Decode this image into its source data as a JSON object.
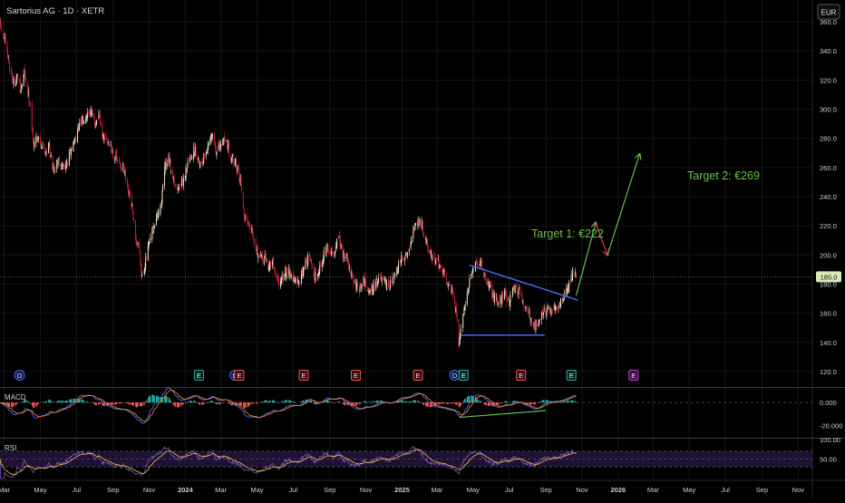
{
  "header": {
    "title": "Sartorius AG · 1D · XETR",
    "currency_button": "EUR"
  },
  "colors": {
    "background": "#000000",
    "grid": "#151515",
    "candle_up": "#ece7c8",
    "candle_down": "#c41f35",
    "trendline": "#3d6df0",
    "projection_up": "#6bbf4a",
    "projection_down": "#e53b4a",
    "macd_line": "#3d79f2",
    "signal_line": "#f07a34",
    "hist_pos": "#26a69a",
    "hist_neg": "#ef5350",
    "rsi_line": "#7e57c2",
    "rsi_ma": "#f2c23a",
    "price_badge": "#d9e8b8"
  },
  "annotations": {
    "target1": "Target 1: €222",
    "target2": "Target 2: €269"
  },
  "event_markers": [
    {
      "kind": "D",
      "date": "2023-03-27"
    },
    {
      "kind": "E",
      "date": "2024-01-24"
    },
    {
      "kind": "D",
      "date": "2024-03-25"
    },
    {
      "kind": "E",
      "date": "2024-04-01"
    },
    {
      "kind": "E",
      "date": "2024-07-19"
    },
    {
      "kind": "E",
      "date": "2024-10-15"
    },
    {
      "kind": "E",
      "date": "2025-01-28"
    },
    {
      "kind": "D",
      "date": "2025-03-31"
    },
    {
      "kind": "E",
      "date": "2025-04-15"
    },
    {
      "kind": "E",
      "date": "2025-07-21"
    },
    {
      "kind": "E",
      "date": "2025-10-14"
    },
    {
      "kind": "E",
      "date": "2026-01-27",
      "upcoming": true
    }
  ],
  "chart_data": [
    {
      "type": "candlestick",
      "title": "Sartorius AG · 1D · XETR",
      "currency": "EUR",
      "x_range": [
        "2023-02-22",
        "2026-11-25"
      ],
      "ylim": [
        110,
        370
      ],
      "y_ticks": [
        120.0,
        140.0,
        160.0,
        180.0,
        200.0,
        220.0,
        240.0,
        260.0,
        280.0,
        300.0,
        320.0,
        340.0,
        360.0
      ],
      "x_ticks": [
        {
          "label": "Mar",
          "date": "2023-03-01"
        },
        {
          "label": "May",
          "date": "2023-05-01"
        },
        {
          "label": "Jul",
          "date": "2023-07-01"
        },
        {
          "label": "Sep",
          "date": "2023-09-01"
        },
        {
          "label": "Nov",
          "date": "2023-11-01"
        },
        {
          "label": "2024",
          "date": "2024-01-01"
        },
        {
          "label": "Mar",
          "date": "2024-03-01"
        },
        {
          "label": "May",
          "date": "2024-05-01"
        },
        {
          "label": "Jul",
          "date": "2024-07-01"
        },
        {
          "label": "Sep",
          "date": "2024-09-01"
        },
        {
          "label": "Nov",
          "date": "2024-11-01"
        },
        {
          "label": "2025",
          "date": "2025-01-01"
        },
        {
          "label": "Mar",
          "date": "2025-03-01"
        },
        {
          "label": "May",
          "date": "2025-05-01"
        },
        {
          "label": "Jul",
          "date": "2025-07-01"
        },
        {
          "label": "Sep",
          "date": "2025-09-01"
        },
        {
          "label": "Nov",
          "date": "2025-11-01"
        },
        {
          "label": "2026",
          "date": "2026-01-01"
        },
        {
          "label": "Mar",
          "date": "2026-03-01"
        },
        {
          "label": "May",
          "date": "2026-05-01"
        },
        {
          "label": "Jul",
          "date": "2026-07-01"
        },
        {
          "label": "Sep",
          "date": "2026-09-01"
        },
        {
          "label": "Nov",
          "date": "2026-11-01"
        }
      ],
      "last_price": 185.0,
      "last_price_label": "185.0",
      "close_path": [
        [
          "2023-02-22",
          358
        ],
        [
          "2023-03-03",
          345
        ],
        [
          "2023-03-10",
          330
        ],
        [
          "2023-03-17",
          318
        ],
        [
          "2023-03-24",
          322
        ],
        [
          "2023-03-29",
          312
        ],
        [
          "2023-04-04",
          326
        ],
        [
          "2023-04-11",
          310
        ],
        [
          "2023-04-14",
          305
        ],
        [
          "2023-04-19",
          276
        ],
        [
          "2023-04-28",
          282
        ],
        [
          "2023-05-08",
          270
        ],
        [
          "2023-05-16",
          276
        ],
        [
          "2023-05-22",
          258
        ],
        [
          "2023-06-01",
          266
        ],
        [
          "2023-06-08",
          260
        ],
        [
          "2023-06-15",
          262
        ],
        [
          "2023-06-22",
          272
        ],
        [
          "2023-07-03",
          285
        ],
        [
          "2023-07-10",
          292
        ],
        [
          "2023-07-17",
          296
        ],
        [
          "2023-07-24",
          300
        ],
        [
          "2023-08-01",
          290
        ],
        [
          "2023-08-08",
          295
        ],
        [
          "2023-08-15",
          280
        ],
        [
          "2023-08-24",
          278
        ],
        [
          "2023-09-01",
          270
        ],
        [
          "2023-09-11",
          262
        ],
        [
          "2023-09-18",
          260
        ],
        [
          "2023-09-25",
          245
        ],
        [
          "2023-10-02",
          235
        ],
        [
          "2023-10-09",
          210
        ],
        [
          "2023-10-16",
          205
        ],
        [
          "2023-10-19",
          186
        ],
        [
          "2023-10-23",
          190
        ],
        [
          "2023-10-30",
          204
        ],
        [
          "2023-11-06",
          215
        ],
        [
          "2023-11-13",
          225
        ],
        [
          "2023-11-20",
          232
        ],
        [
          "2023-11-27",
          258
        ],
        [
          "2023-12-04",
          265
        ],
        [
          "2023-12-11",
          255
        ],
        [
          "2023-12-18",
          245
        ],
        [
          "2023-12-27",
          250
        ],
        [
          "2024-01-05",
          262
        ],
        [
          "2024-01-12",
          270
        ],
        [
          "2024-01-19",
          272
        ],
        [
          "2024-01-26",
          262
        ],
        [
          "2024-02-02",
          268
        ],
        [
          "2024-02-09",
          275
        ],
        [
          "2024-02-16",
          282
        ],
        [
          "2024-02-23",
          270
        ],
        [
          "2024-03-01",
          275
        ],
        [
          "2024-03-08",
          282
        ],
        [
          "2024-03-15",
          272
        ],
        [
          "2024-03-22",
          265
        ],
        [
          "2024-03-29",
          258
        ],
        [
          "2024-04-04",
          250
        ],
        [
          "2024-04-08",
          230
        ],
        [
          "2024-04-15",
          222
        ],
        [
          "2024-04-22",
          220
        ],
        [
          "2024-04-29",
          206
        ],
        [
          "2024-05-06",
          196
        ],
        [
          "2024-05-13",
          200
        ],
        [
          "2024-05-20",
          192
        ],
        [
          "2024-05-27",
          195
        ],
        [
          "2024-06-03",
          184
        ],
        [
          "2024-06-10",
          180
        ],
        [
          "2024-06-17",
          188
        ],
        [
          "2024-06-24",
          190
        ],
        [
          "2024-07-01",
          183
        ],
        [
          "2024-07-08",
          180
        ],
        [
          "2024-07-15",
          186
        ],
        [
          "2024-07-22",
          196
        ],
        [
          "2024-07-29",
          198
        ],
        [
          "2024-08-05",
          185
        ],
        [
          "2024-08-12",
          188
        ],
        [
          "2024-08-19",
          196
        ],
        [
          "2024-08-26",
          206
        ],
        [
          "2024-09-02",
          200
        ],
        [
          "2024-09-09",
          204
        ],
        [
          "2024-09-16",
          212
        ],
        [
          "2024-09-23",
          200
        ],
        [
          "2024-09-30",
          198
        ],
        [
          "2024-10-07",
          186
        ],
        [
          "2024-10-14",
          180
        ],
        [
          "2024-10-21",
          175
        ],
        [
          "2024-10-28",
          182
        ],
        [
          "2024-11-04",
          178
        ],
        [
          "2024-11-11",
          176
        ],
        [
          "2024-11-18",
          182
        ],
        [
          "2024-11-25",
          184
        ],
        [
          "2024-12-02",
          180
        ],
        [
          "2024-12-09",
          178
        ],
        [
          "2024-12-16",
          182
        ],
        [
          "2024-12-23",
          188
        ],
        [
          "2024-12-30",
          196
        ],
        [
          "2025-01-06",
          200
        ],
        [
          "2025-01-13",
          204
        ],
        [
          "2025-01-20",
          218
        ],
        [
          "2025-01-27",
          222
        ],
        [
          "2025-01-31",
          226
        ],
        [
          "2025-02-07",
          215
        ],
        [
          "2025-02-14",
          205
        ],
        [
          "2025-02-21",
          198
        ],
        [
          "2025-02-28",
          196
        ],
        [
          "2025-03-07",
          192
        ],
        [
          "2025-03-14",
          186
        ],
        [
          "2025-03-21",
          180
        ],
        [
          "2025-03-28",
          174
        ],
        [
          "2025-04-04",
          155
        ],
        [
          "2025-04-07",
          138
        ],
        [
          "2025-04-14",
          160
        ],
        [
          "2025-04-22",
          175
        ],
        [
          "2025-04-28",
          186
        ],
        [
          "2025-05-05",
          192
        ],
        [
          "2025-05-12",
          195
        ],
        [
          "2025-05-19",
          188
        ],
        [
          "2025-05-26",
          180
        ],
        [
          "2025-06-02",
          174
        ],
        [
          "2025-06-09",
          168
        ],
        [
          "2025-06-16",
          170
        ],
        [
          "2025-06-23",
          174
        ],
        [
          "2025-06-30",
          168
        ],
        [
          "2025-07-07",
          176
        ],
        [
          "2025-07-14",
          178
        ],
        [
          "2025-07-21",
          170
        ],
        [
          "2025-07-28",
          164
        ],
        [
          "2025-08-04",
          160
        ],
        [
          "2025-08-11",
          150
        ],
        [
          "2025-08-18",
          154
        ],
        [
          "2025-08-25",
          160
        ],
        [
          "2025-09-01",
          162
        ],
        [
          "2025-09-08",
          160
        ],
        [
          "2025-09-15",
          163
        ],
        [
          "2025-09-22",
          164
        ],
        [
          "2025-09-29",
          170
        ],
        [
          "2025-10-06",
          176
        ],
        [
          "2025-10-13",
          182
        ],
        [
          "2025-10-17",
          190
        ],
        [
          "2025-10-22",
          185
        ]
      ],
      "lines": [
        {
          "id": "resistance-trendline",
          "from": [
            "2025-04-25",
            193
          ],
          "to": [
            "2025-10-25",
            169
          ]
        },
        {
          "id": "support-line",
          "from": [
            "2025-04-10",
            145
          ],
          "to": [
            "2025-08-30",
            145
          ]
        }
      ],
      "projection": [
        {
          "from": [
            "2025-10-22",
            172
          ],
          "to": [
            "2025-11-24",
            222
          ],
          "direction": "up"
        },
        {
          "from": [
            "2025-11-24",
            222
          ],
          "to": [
            "2025-12-14",
            200
          ],
          "direction": "down"
        },
        {
          "from": [
            "2025-12-14",
            200
          ],
          "to": [
            "2026-02-06",
            269
          ],
          "direction": "up"
        }
      ],
      "targets": [
        222,
        269
      ]
    },
    {
      "type": "line",
      "title": "MACD",
      "ylim": [
        -30,
        12
      ],
      "y_ticks_labeled": [
        0.0,
        -20.0
      ],
      "y_tick_labels": [
        "0.000",
        "-20.000"
      ],
      "zero_line": 0,
      "divergence_line": {
        "from": [
          "2025-04-08",
          -13
        ],
        "to": [
          "2025-09-01",
          -7
        ]
      }
    },
    {
      "type": "line",
      "title": "RSI",
      "ylim": [
        0,
        100
      ],
      "y_ticks_labeled": [
        50.0,
        100.0
      ],
      "y_tick_labels": [
        "50.00",
        "100.00"
      ],
      "band": [
        30,
        70
      ]
    }
  ]
}
